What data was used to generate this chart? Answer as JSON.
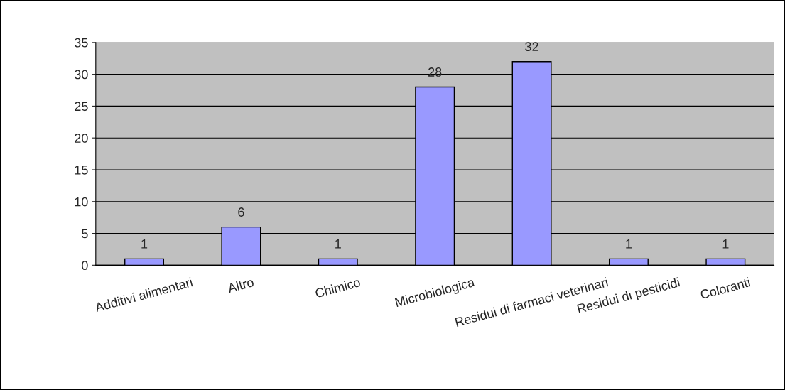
{
  "chart_data": {
    "type": "bar",
    "categories": [
      "Additivi alimentari",
      "Altro",
      "Chimico",
      "Microbiologica",
      "Residui di farmaci veterinari",
      "Residui di pesticidi",
      "Coloranti"
    ],
    "values": [
      1,
      6,
      1,
      28,
      32,
      1,
      1
    ],
    "color": "#9999ff",
    "ylim": [
      0,
      35
    ],
    "yticks": [
      0,
      5,
      10,
      15,
      20,
      25,
      30,
      35
    ],
    "grid": "y",
    "data_labels": true
  }
}
